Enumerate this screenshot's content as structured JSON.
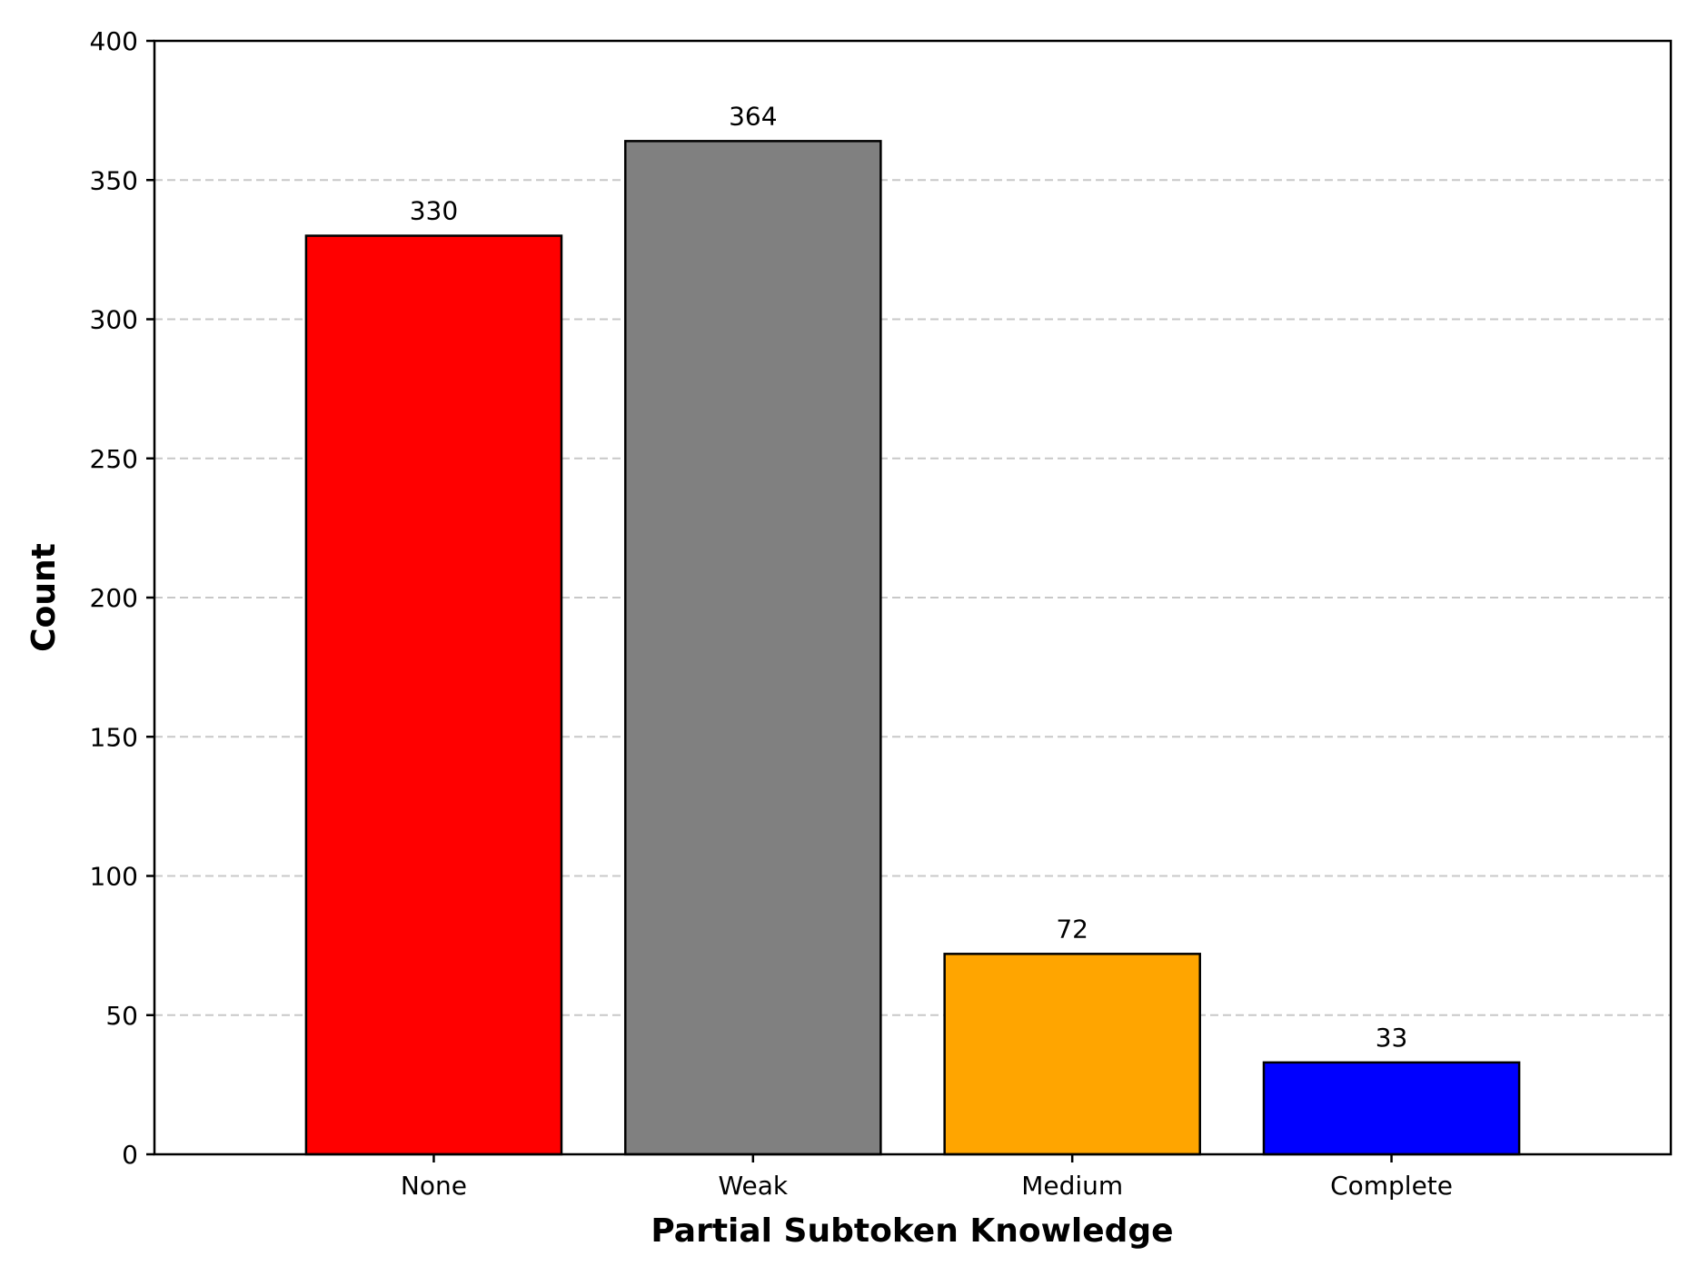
{
  "chart_data": {
    "type": "bar",
    "title": "",
    "xlabel": "Partial Subtoken Knowledge",
    "ylabel": "Count",
    "categories": [
      "None",
      "Weak",
      "Medium",
      "Complete"
    ],
    "values": [
      330,
      364,
      72,
      33
    ],
    "value_labels": [
      "330",
      "364",
      "72",
      "33"
    ],
    "colors": [
      "#ff0000",
      "#808080",
      "#ffa500",
      "#0000ff"
    ],
    "edge_color": "#000000",
    "ylim": [
      0,
      400
    ],
    "yticks": [
      0,
      50,
      100,
      150,
      200,
      250,
      300,
      350,
      400
    ],
    "grid": {
      "axis": "y",
      "style": "dashed",
      "color": "#c8c8c8"
    },
    "legend": "none"
  }
}
